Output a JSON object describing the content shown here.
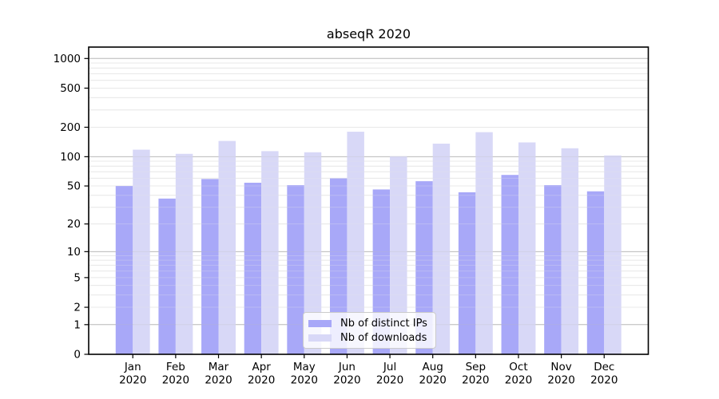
{
  "title": "abseqR 2020",
  "legend": {
    "items": [
      {
        "label": "Nb of distinct IPs",
        "color": "#a8a8f8"
      },
      {
        "label": "Nb of downloads",
        "color": "#d8d8f7"
      }
    ]
  },
  "chart_data": {
    "type": "bar",
    "title": "abseqR 2020",
    "categories": [
      "Jan",
      "Feb",
      "Mar",
      "Apr",
      "May",
      "Jun",
      "Jul",
      "Aug",
      "Sep",
      "Oct",
      "Nov",
      "Dec"
    ],
    "category_year": "2020",
    "series": [
      {
        "name": "Nb of distinct IPs",
        "color": "#a8a8f8",
        "values": [
          50,
          37,
          59,
          54,
          51,
          60,
          46,
          56,
          43,
          65,
          51,
          44
        ]
      },
      {
        "name": "Nb of downloads",
        "color": "#d8d8f7",
        "values": [
          118,
          107,
          145,
          114,
          111,
          180,
          101,
          136,
          178,
          140,
          122,
          103
        ]
      }
    ],
    "xlabel": "",
    "ylabel": "",
    "yscale": "log1p",
    "yticks": [
      0,
      1,
      2,
      5,
      10,
      20,
      50,
      100,
      200,
      500,
      1000
    ],
    "ylim": [
      0,
      1306
    ],
    "grid": true,
    "grid_major_color": "#bcbcbc",
    "grid_minor_color": "#e8e8e8",
    "legend_position": "lower center"
  }
}
